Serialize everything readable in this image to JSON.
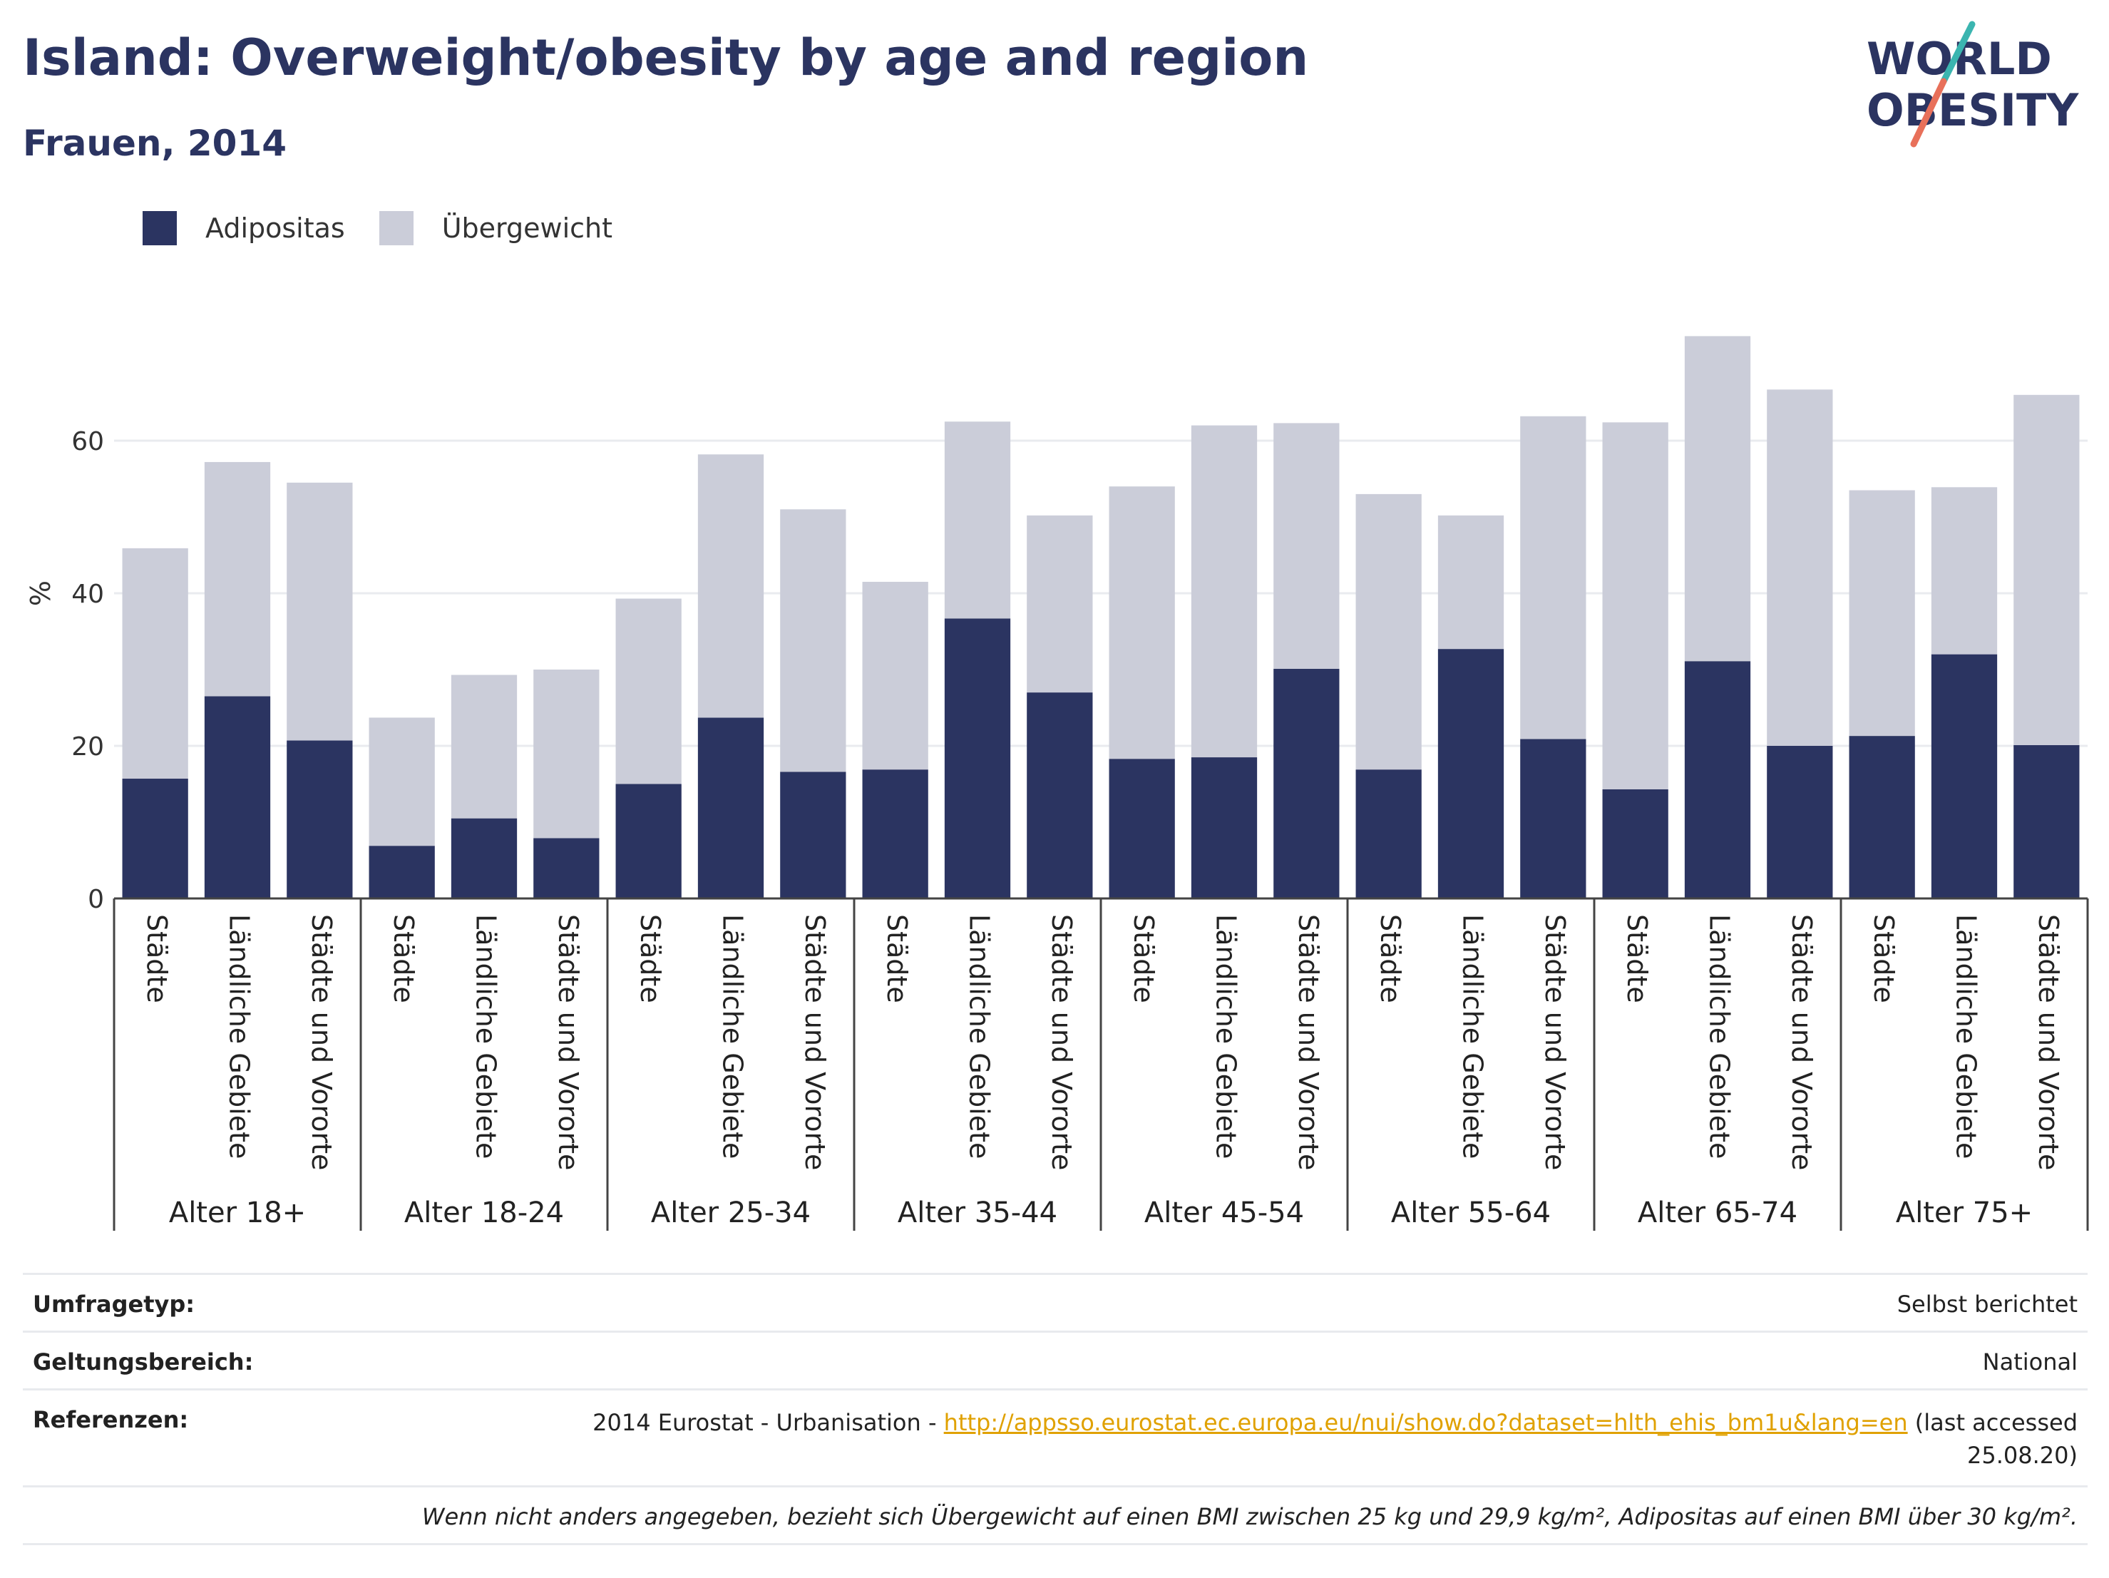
{
  "header": {
    "title": "Island: Overweight/obesity by age and region",
    "subtitle": "Frauen, 2014"
  },
  "logo": {
    "line1": "WORLD",
    "line2": "OBESITY"
  },
  "colors": {
    "obesity": "#2b3461",
    "overweight": "#cbcdd9",
    "title": "#2b3461",
    "link": "#e0a100"
  },
  "legend": [
    {
      "label": "Adipositas",
      "color": "#2b3461"
    },
    {
      "label": "Übergewicht",
      "color": "#cbcdd9"
    }
  ],
  "chart_data": {
    "type": "bar",
    "stacked": true,
    "ylabel": "%",
    "ylim": [
      0,
      80
    ],
    "yticks": [
      0,
      20,
      40,
      60
    ],
    "grid": true,
    "legend_position": "top-left",
    "groups": [
      {
        "label": "Alter 18+",
        "categories": [
          "Städte",
          "Ländliche Gebiete",
          "Städte und Vororte"
        ],
        "obesity": [
          15.7,
          26.5,
          20.7
        ],
        "overweight": [
          30.2,
          30.7,
          33.8
        ]
      },
      {
        "label": "Alter 18-24",
        "categories": [
          "Städte",
          "Ländliche Gebiete",
          "Städte und Vororte"
        ],
        "obesity": [
          6.9,
          10.5,
          7.9
        ],
        "overweight": [
          16.8,
          18.8,
          22.1
        ]
      },
      {
        "label": "Alter 25-34",
        "categories": [
          "Städte",
          "Ländliche Gebiete",
          "Städte und Vororte"
        ],
        "obesity": [
          15.0,
          23.7,
          16.6
        ],
        "overweight": [
          24.3,
          34.5,
          34.4
        ]
      },
      {
        "label": "Alter 35-44",
        "categories": [
          "Städte",
          "Ländliche Gebiete",
          "Städte und Vororte"
        ],
        "obesity": [
          16.9,
          36.7,
          27.0
        ],
        "overweight": [
          24.6,
          25.8,
          23.2
        ]
      },
      {
        "label": "Alter 45-54",
        "categories": [
          "Städte",
          "Ländliche Gebiete",
          "Städte und Vororte"
        ],
        "obesity": [
          18.3,
          18.5,
          30.1
        ],
        "overweight": [
          35.7,
          43.5,
          32.2
        ]
      },
      {
        "label": "Alter 55-64",
        "categories": [
          "Städte",
          "Ländliche Gebiete",
          "Städte und Vororte"
        ],
        "obesity": [
          16.9,
          32.7,
          20.9
        ],
        "overweight": [
          36.1,
          17.5,
          42.3
        ]
      },
      {
        "label": "Alter 65-74",
        "categories": [
          "Städte",
          "Ländliche Gebiete",
          "Städte und Vororte"
        ],
        "obesity": [
          14.3,
          31.1,
          20.0
        ],
        "overweight": [
          48.1,
          42.6,
          46.7
        ]
      },
      {
        "label": "Alter 75+",
        "categories": [
          "Städte",
          "Ländliche Gebiete",
          "Städte und Vororte"
        ],
        "obesity": [
          21.3,
          32.0,
          20.1
        ],
        "overweight": [
          32.2,
          21.9,
          45.9
        ]
      }
    ]
  },
  "footer": {
    "survey_type_label": "Umfragetyp:",
    "survey_type_value": "Selbst berichtet",
    "scope_label": "Geltungsbereich:",
    "scope_value": "National",
    "references_label": "Referenzen:",
    "references_prefix": "2014 Eurostat - Urbanisation - ",
    "references_link": "http://appsso.eurostat.ec.europa.eu/nui/show.do?dataset=hlth_ehis_bm1u&lang=en",
    "references_suffix": " (last accessed 25.08.20)",
    "note": "Wenn nicht anders angegeben, bezieht sich Übergewicht auf einen BMI zwischen 25 kg und 29,9 kg/m², Adipositas auf einen BMI über 30 kg/m²."
  }
}
